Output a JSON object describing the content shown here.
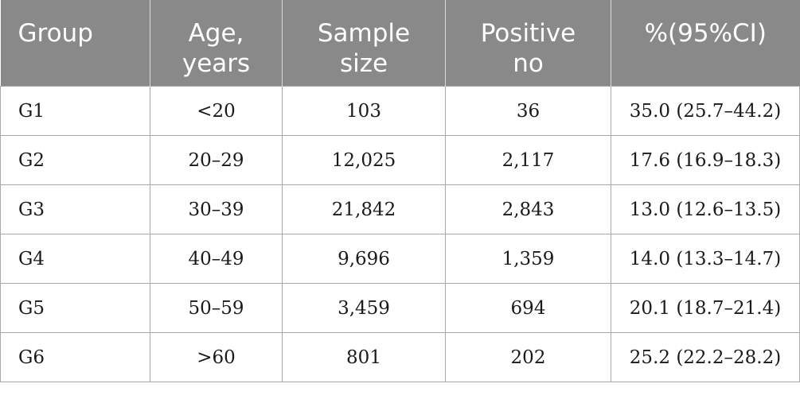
{
  "table": {
    "headers": [
      "Group",
      "Age,\nyears",
      "Sample\nsize",
      "Positive\nno",
      "%(95%CI)"
    ],
    "rows": [
      [
        "G1",
        "<20",
        "103",
        "36",
        "35.0 (25.7–44.2)"
      ],
      [
        "G2",
        "20–29",
        "12,025",
        "2,117",
        "17.6 (16.9–18.3)"
      ],
      [
        "G3",
        "30–39",
        "21,842",
        "2,843",
        "13.0 (12.6–13.5)"
      ],
      [
        "G4",
        "40–49",
        "9,696",
        "1,359",
        "14.0 (13.3–14.7)"
      ],
      [
        "G5",
        "50–59",
        "3,459",
        "694",
        "20.1 (18.7–21.4)"
      ],
      [
        "G6",
        ">60",
        "801",
        "202",
        "25.2 (22.2–28.2)"
      ]
    ]
  }
}
